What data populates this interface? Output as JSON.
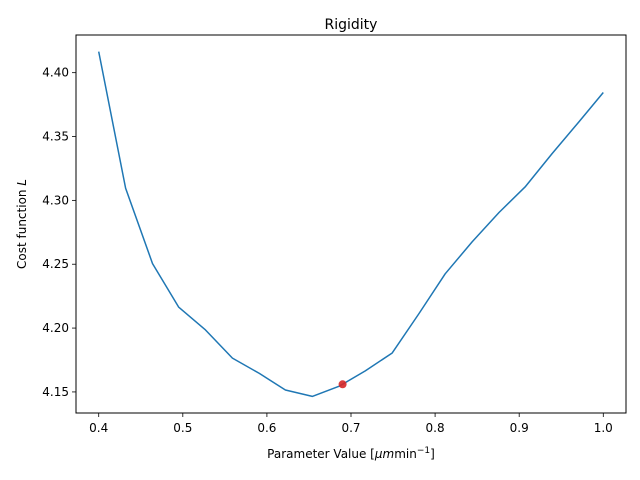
{
  "chart_data": {
    "type": "line",
    "title": "Rigidity",
    "xlabel_prefix": "Parameter Value [",
    "xlabel_math": "μm",
    "xlabel_unit": "min",
    "xlabel_exp": "−1",
    "xlabel_suffix": "]",
    "ylabel_prefix": "Cost function ",
    "ylabel_math": "L",
    "xlim": [
      0.373,
      1.027
    ],
    "ylim": [
      4.1335,
      4.4295
    ],
    "xticks": [
      0.4,
      0.5,
      0.6,
      0.7,
      0.8,
      0.9,
      1.0
    ],
    "xtick_labels": [
      "0.4",
      "0.5",
      "0.6",
      "0.7",
      "0.8",
      "0.9",
      "1.0"
    ],
    "yticks": [
      4.15,
      4.2,
      4.25,
      4.3,
      4.35,
      4.4
    ],
    "ytick_labels": [
      "4.15",
      "4.20",
      "4.25",
      "4.30",
      "4.35",
      "4.40"
    ],
    "grid": false,
    "series": [
      {
        "color": "#1f77b4",
        "x": [
          0.4,
          0.432,
          0.464,
          0.495,
          0.527,
          0.559,
          0.591,
          0.622,
          0.654,
          0.686,
          0.717,
          0.749,
          0.781,
          0.812,
          0.844,
          0.876,
          0.907,
          0.939,
          0.971,
          1.0
        ],
        "y": [
          4.4165,
          4.3095,
          4.2505,
          4.2165,
          4.1985,
          4.1765,
          4.1645,
          4.1515,
          4.1465,
          4.1545,
          4.1665,
          4.1805,
          4.2115,
          4.2425,
          4.2675,
          4.2905,
          4.3105,
          4.3365,
          4.3615,
          4.3845
        ]
      }
    ],
    "marker": {
      "x": 0.69,
      "y": 4.156,
      "color": "#d62728"
    }
  }
}
